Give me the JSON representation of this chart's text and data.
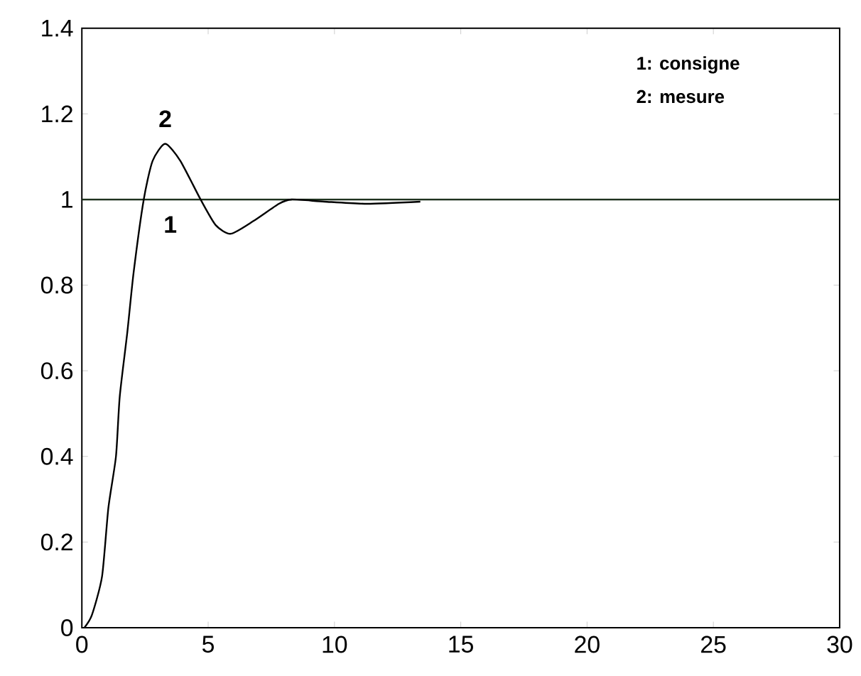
{
  "chart_data": {
    "type": "line",
    "xlim": [
      0,
      30
    ],
    "ylim": [
      0,
      1.4
    ],
    "xticks": [
      0,
      5,
      10,
      15,
      20,
      25,
      30
    ],
    "yticks": [
      0,
      0.2,
      0.4,
      0.6,
      0.8,
      1,
      1.2,
      1.4
    ],
    "grid": false,
    "marker": "none",
    "line_style": "solid",
    "series": [
      {
        "color": "#1e321e",
        "x": [
          0,
          30
        ],
        "values": [
          1,
          1
        ]
      },
      {
        "color": "#000000",
        "x": [
          0.1,
          0.4,
          0.8,
          1.05,
          1.35,
          1.5,
          1.8,
          2.05,
          2.45,
          2.8,
          3.3,
          3.9,
          4.7,
          5.3,
          5.9,
          6.8,
          7.8,
          8.3,
          9.6,
          11.3,
          13.4
        ],
        "values": [
          0,
          0.03,
          0.12,
          0.28,
          0.4,
          0.54,
          0.69,
          0.83,
          1.0,
          1.09,
          1.13,
          1.09,
          1.0,
          0.94,
          0.92,
          0.95,
          0.99,
          1.0,
          0.995,
          0.99,
          0.995
        ]
      }
    ],
    "annotations": [
      "1: consigne",
      "2: mesure",
      {
        "text": "2",
        "x": 3.3,
        "y": 1.13
      },
      {
        "text": "1",
        "x": 3.5,
        "y": 1
      }
    ]
  }
}
